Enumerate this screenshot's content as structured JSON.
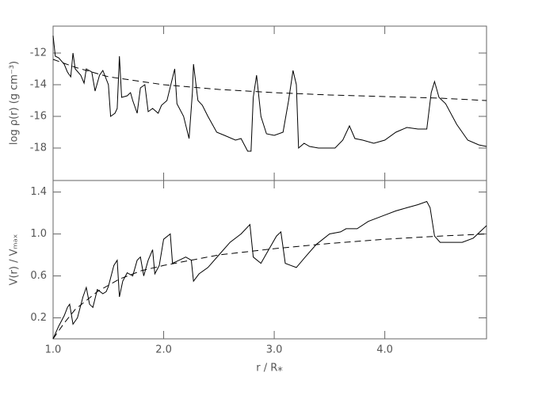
{
  "chart_data": [
    {
      "type": "line",
      "ylabel": "log ρ(r) (g cm⁻³)",
      "xlim": [
        1.0,
        4.92
      ],
      "ylim": [
        -20.05,
        -10.3
      ],
      "yticks": [
        -12,
        -14,
        -16,
        -18
      ],
      "series": [
        {
          "color": "#000000",
          "dashed": false,
          "x": [
            1.0,
            1.02,
            1.05,
            1.1,
            1.13,
            1.16,
            1.18,
            1.2,
            1.25,
            1.28,
            1.3,
            1.35,
            1.38,
            1.42,
            1.45,
            1.5,
            1.52,
            1.56,
            1.58,
            1.6,
            1.62,
            1.67,
            1.7,
            1.72,
            1.76,
            1.79,
            1.83,
            1.86,
            1.9,
            1.95,
            1.98,
            2.03,
            2.1,
            2.12,
            2.18,
            2.23,
            2.26,
            2.27,
            2.31,
            2.35,
            2.4,
            2.48,
            2.55,
            2.65,
            2.7,
            2.76,
            2.79,
            2.81,
            2.84,
            2.88,
            2.93,
            3.0,
            3.08,
            3.13,
            3.17,
            3.2,
            3.22,
            3.27,
            3.32,
            3.4,
            3.55,
            3.62,
            3.68,
            3.73,
            3.8,
            3.9,
            4.0,
            4.1,
            4.2,
            4.3,
            4.38,
            4.42,
            4.45,
            4.49,
            4.55,
            4.65,
            4.75,
            4.85,
            4.92
          ],
          "values": [
            -10.9,
            -12.2,
            -12.3,
            -12.7,
            -13.2,
            -13.5,
            -12.0,
            -13.0,
            -13.4,
            -13.9,
            -13.0,
            -13.2,
            -14.4,
            -13.4,
            -13.1,
            -14.0,
            -16.0,
            -15.8,
            -15.5,
            -12.2,
            -14.8,
            -14.7,
            -14.5,
            -15.0,
            -15.8,
            -14.2,
            -14.0,
            -15.7,
            -15.5,
            -15.8,
            -15.3,
            -15.0,
            -13.0,
            -15.2,
            -16.0,
            -17.4,
            -14.5,
            -12.7,
            -15.0,
            -15.3,
            -16.0,
            -17.0,
            -17.2,
            -17.5,
            -17.4,
            -18.2,
            -18.2,
            -14.8,
            -13.4,
            -16.0,
            -17.1,
            -17.2,
            -17.0,
            -15.0,
            -13.1,
            -14.0,
            -18.0,
            -17.7,
            -17.9,
            -18.0,
            -18.0,
            -17.5,
            -16.6,
            -17.4,
            -17.5,
            -17.7,
            -17.5,
            -17.0,
            -16.7,
            -16.8,
            -16.8,
            -14.5,
            -13.8,
            -14.8,
            -15.2,
            -16.5,
            -17.5,
            -17.8,
            -17.9
          ]
        },
        {
          "color": "#000000",
          "dashed": true,
          "x": [
            1.0,
            1.2,
            1.5,
            2.0,
            2.5,
            3.0,
            3.5,
            4.0,
            4.5,
            4.92
          ],
          "values": [
            -12.4,
            -12.9,
            -13.5,
            -14.0,
            -14.3,
            -14.5,
            -14.65,
            -14.75,
            -14.85,
            -15.0
          ]
        }
      ]
    },
    {
      "type": "line",
      "ylabel": "V(r) / Vₘₐₓ",
      "xlabel": "r / R⁎",
      "xlim": [
        1.0,
        4.92
      ],
      "ylim": [
        0,
        1.51
      ],
      "xticks": [
        {
          "value": 1,
          "label": "1.0"
        },
        {
          "value": 2,
          "label": "2.0"
        },
        {
          "value": 3,
          "label": "3.0"
        },
        {
          "value": 4,
          "label": "4.0"
        }
      ],
      "yticks": [
        1.4,
        {
          "value": 1,
          "label": "1.0"
        },
        0.6,
        0.2
      ],
      "series": [
        {
          "color": "#000000",
          "dashed": false,
          "x": [
            1.0,
            1.05,
            1.1,
            1.13,
            1.15,
            1.18,
            1.22,
            1.27,
            1.3,
            1.33,
            1.36,
            1.4,
            1.45,
            1.48,
            1.5,
            1.55,
            1.58,
            1.6,
            1.63,
            1.67,
            1.72,
            1.76,
            1.79,
            1.82,
            1.86,
            1.9,
            1.92,
            1.96,
            2.0,
            2.06,
            2.08,
            2.14,
            2.2,
            2.25,
            2.27,
            2.32,
            2.4,
            2.5,
            2.6,
            2.7,
            2.78,
            2.81,
            2.88,
            2.95,
            3.02,
            3.06,
            3.1,
            3.15,
            3.2,
            3.28,
            3.38,
            3.5,
            3.6,
            3.65,
            3.75,
            3.85,
            4.0,
            4.1,
            4.2,
            4.3,
            4.38,
            4.41,
            4.45,
            4.5,
            4.6,
            4.7,
            4.8,
            4.92
          ],
          "values": [
            0.0,
            0.12,
            0.22,
            0.3,
            0.33,
            0.14,
            0.2,
            0.4,
            0.49,
            0.33,
            0.3,
            0.47,
            0.43,
            0.45,
            0.5,
            0.7,
            0.75,
            0.4,
            0.55,
            0.63,
            0.6,
            0.75,
            0.78,
            0.6,
            0.75,
            0.85,
            0.62,
            0.7,
            0.95,
            1.0,
            0.72,
            0.75,
            0.78,
            0.75,
            0.55,
            0.62,
            0.68,
            0.8,
            0.92,
            1.0,
            1.09,
            0.78,
            0.72,
            0.85,
            0.98,
            1.02,
            0.72,
            0.7,
            0.68,
            0.78,
            0.9,
            1.0,
            1.02,
            1.05,
            1.05,
            1.12,
            1.18,
            1.22,
            1.25,
            1.28,
            1.31,
            1.25,
            0.98,
            0.92,
            0.92,
            0.92,
            0.96,
            1.08
          ]
        },
        {
          "color": "#000000",
          "dashed": true,
          "x": [
            1.0,
            1.1,
            1.2,
            1.4,
            1.6,
            1.8,
            2.0,
            2.5,
            3.0,
            3.5,
            4.0,
            4.5,
            4.92
          ],
          "values": [
            0.0,
            0.15,
            0.28,
            0.45,
            0.57,
            0.65,
            0.7,
            0.8,
            0.86,
            0.91,
            0.95,
            0.98,
            1.0
          ]
        }
      ]
    }
  ]
}
